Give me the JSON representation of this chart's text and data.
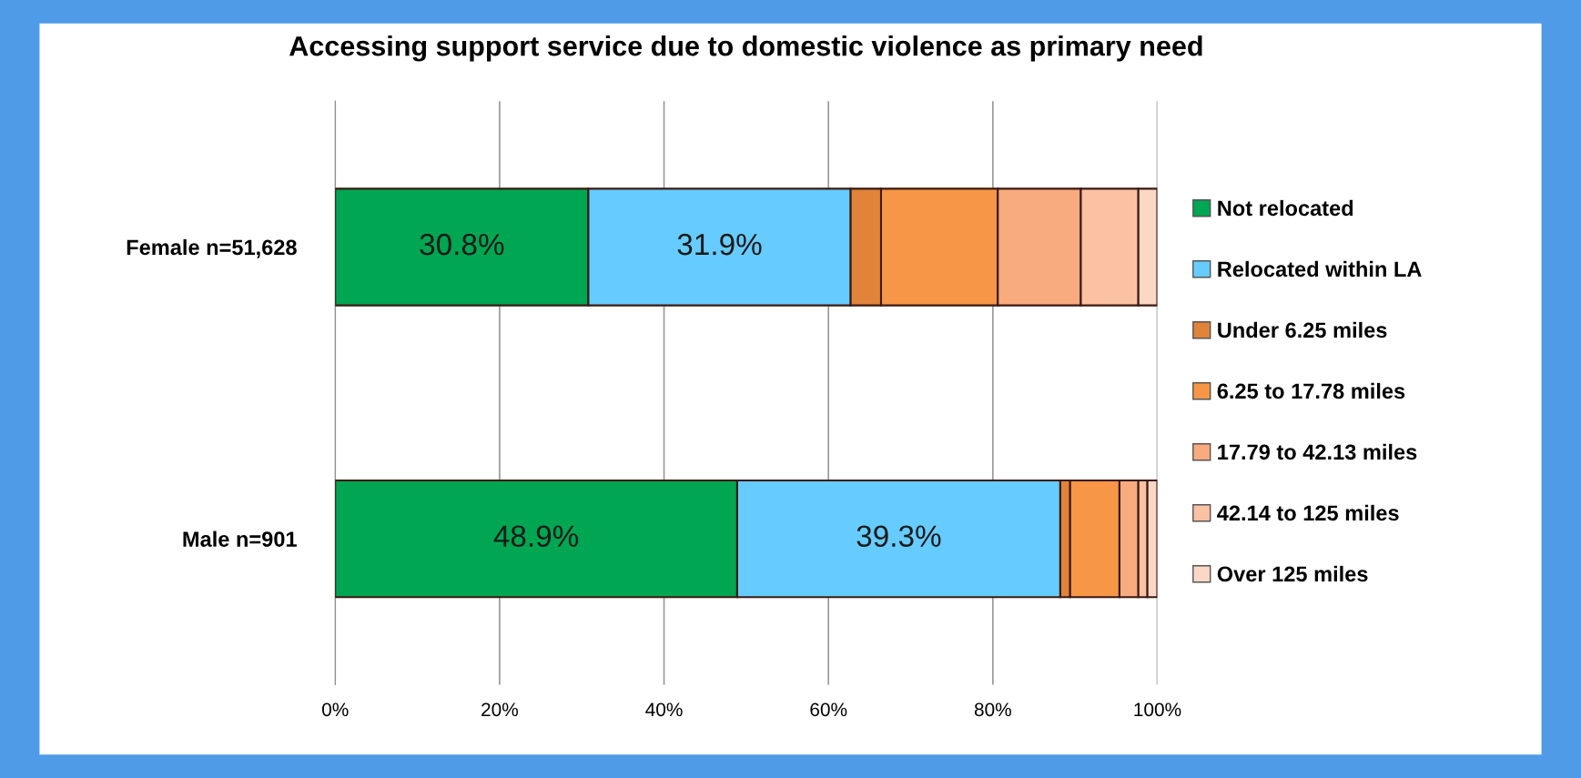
{
  "chart_data": {
    "type": "bar",
    "orientation": "horizontal",
    "stacked": true,
    "title": "Accessing support service due to domestic violence as primary need",
    "categories": [
      "Female n=51,628",
      "Male n=901"
    ],
    "series": [
      {
        "name": "Not relocated",
        "color": "#00a651",
        "values": [
          30.8,
          48.9
        ],
        "value_labels": [
          "30.8%",
          "48.9%"
        ]
      },
      {
        "name": "Relocated within LA",
        "color": "#66ccff",
        "values": [
          31.9,
          39.3
        ],
        "value_labels": [
          "31.9%",
          "39.3%"
        ]
      },
      {
        "name": "Under 6.25 miles",
        "color": "#e0843a",
        "values": [
          3.7,
          1.2
        ]
      },
      {
        "name": "6.25 to 17.78 miles",
        "color": "#f79646",
        "values": [
          14.2,
          6.0
        ]
      },
      {
        "name": "17.79 to 42.13 miles",
        "color": "#f8ab7e",
        "values": [
          10.1,
          2.3
        ]
      },
      {
        "name": "42.14 to 125 miles",
        "color": "#fac2a2",
        "values": [
          7.0,
          1.1
        ]
      },
      {
        "name": "Over 125 miles",
        "color": "#fbd8c6",
        "values": [
          2.3,
          1.2
        ]
      }
    ],
    "xlim": [
      0,
      100
    ],
    "xticks": [
      {
        "value": 0,
        "label": "0%"
      },
      {
        "value": 20,
        "label": "20%"
      },
      {
        "value": 40,
        "label": "40%"
      },
      {
        "value": 60,
        "label": "60%"
      },
      {
        "value": 80,
        "label": "80%"
      },
      {
        "value": 100,
        "label": "100%"
      }
    ],
    "grid": "x",
    "legend": "right"
  }
}
